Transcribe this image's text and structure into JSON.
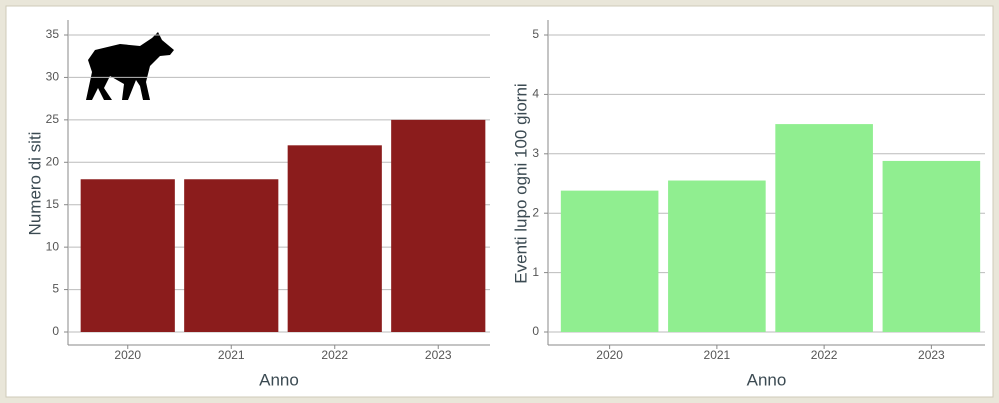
{
  "chart_data": [
    {
      "type": "bar",
      "categories": [
        "2020",
        "2021",
        "2022",
        "2023"
      ],
      "values": [
        18,
        18,
        22,
        25
      ],
      "color": "#8b1c1c",
      "ylim": [
        0,
        35
      ],
      "yticks": [
        0,
        5,
        10,
        15,
        20,
        25,
        30,
        35
      ],
      "grid": true,
      "y_label": "Numero di siti",
      "x_label": "Anno"
    },
    {
      "type": "bar",
      "categories": [
        "2020",
        "2021",
        "2022",
        "2023"
      ],
      "values": [
        2.38,
        2.55,
        3.5,
        2.88
      ],
      "color": "#90ee90",
      "ylim": [
        0,
        5
      ],
      "yticks": [
        0,
        1,
        2,
        3,
        4,
        5
      ],
      "grid": true,
      "y_label": "Eventi lupo ogni 100 giorni",
      "x_label": "Anno"
    }
  ]
}
